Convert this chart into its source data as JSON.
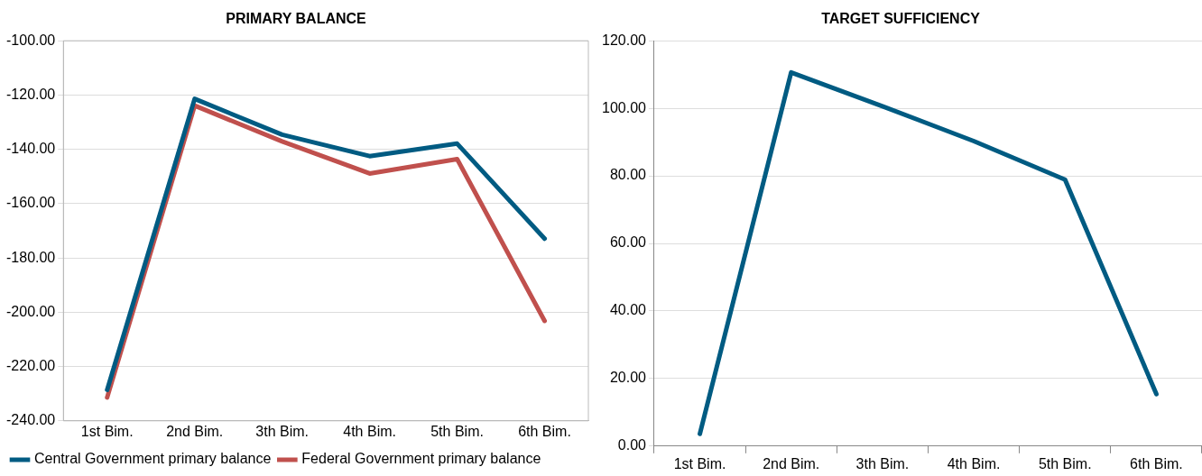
{
  "chart_data": [
    {
      "type": "line",
      "title": "PRIMARY BALANCE",
      "categories": [
        "1st Bim.",
        "2nd Bim.",
        "3th Bim.",
        "4th Bim.",
        "5th Bim.",
        "6th Bim."
      ],
      "series": [
        {
          "name": "Central Government primary balance",
          "color": "#005b82",
          "values": [
            -228.6,
            -121.4,
            -134.6,
            -142.5,
            -137.9,
            -172.9
          ]
        },
        {
          "name": "Federal Government primary balance",
          "color": "#c0504d",
          "values": [
            -231.4,
            -123.9,
            -137.1,
            -148.9,
            -143.6,
            -203.2
          ]
        }
      ],
      "ylim": [
        -240,
        -100
      ],
      "yticks": [
        {
          "value": -240,
          "label": "-240.00"
        },
        {
          "value": -220,
          "label": "-220.00"
        },
        {
          "value": -200,
          "label": "-200.00"
        },
        {
          "value": -180,
          "label": "-180.00"
        },
        {
          "value": -160,
          "label": "-160.00"
        },
        {
          "value": -140,
          "label": "-140.00"
        },
        {
          "value": -120,
          "label": "-120.00"
        },
        {
          "value": -100,
          "label": "-100.00"
        }
      ],
      "grid": "y",
      "legend": "bottom",
      "marker": "none",
      "line_style": "solid"
    },
    {
      "type": "line",
      "title": "TARGET SUFFICIENCY",
      "categories": [
        "1st Bim.",
        "2nd Bim.",
        "3th Bim.",
        "4th Bim.",
        "5th Bim.",
        "6th Bim."
      ],
      "series": [
        {
          "color": "#005b82",
          "values": [
            3.6,
            110.6,
            100.6,
            90.3,
            78.9,
            15.4
          ]
        }
      ],
      "ylim": [
        0,
        120
      ],
      "yticks": [
        {
          "value": 0,
          "label": "0.00"
        },
        {
          "value": 20,
          "label": "20.00"
        },
        {
          "value": 40,
          "label": "40.00"
        },
        {
          "value": 60,
          "label": "60.00"
        },
        {
          "value": 80,
          "label": "80.00"
        },
        {
          "value": 100,
          "label": "100.00"
        },
        {
          "value": 120,
          "label": "120.00"
        }
      ],
      "grid": "y",
      "legend": false,
      "marker": "none",
      "line_style": "solid"
    }
  ]
}
